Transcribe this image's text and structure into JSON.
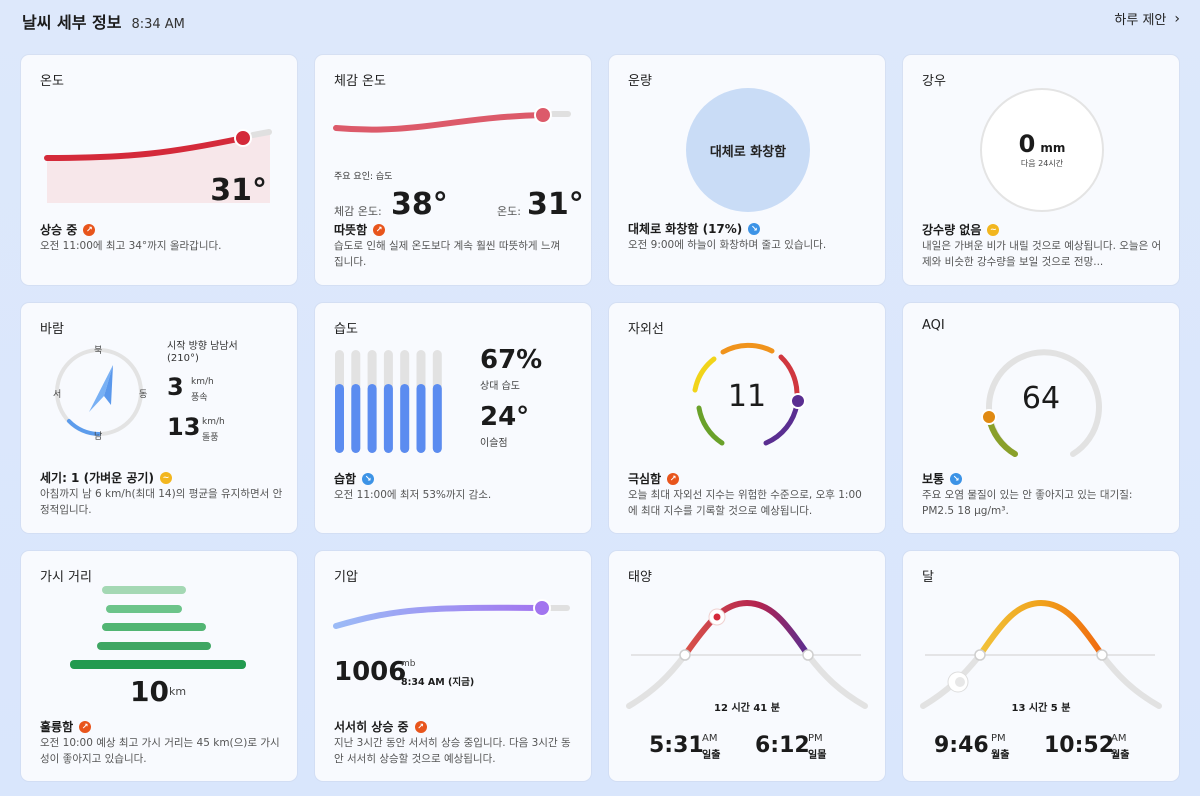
{
  "header": {
    "title": "날씨 세부 정보",
    "time": "8:34 AM",
    "link_label": "하루 제안"
  },
  "temperature": {
    "title": "온도",
    "value": "31°",
    "status": "상승 중",
    "description": "오전 11:00에 최고 34°까지 올라갑니다."
  },
  "feels_like": {
    "title": "체감 온도",
    "factor": "주요 요인: 습도",
    "feels_label": "체감 온도:",
    "feels_value": "38°",
    "temp_label": "온도:",
    "temp_value": "31°",
    "status": "따뜻함",
    "description": "습도로 인해 실제 온도보다 계속 훨씬 따뜻하게 느껴집니다."
  },
  "cloud": {
    "title": "운량",
    "center_text": "대체로 화창함",
    "status": "대체로 화창함 (17%)",
    "description": "오전 9:00에 하늘이 화창하며 줄고 있습니다."
  },
  "rain": {
    "title": "강우",
    "amount": "0",
    "unit": "mm",
    "period": "다음 24시간",
    "status": "강수량 없음",
    "description": "내일은 가벼운 비가 내릴 것으로 예상됩니다. 오늘은 어제와 비슷한 강수량을 보일 것으로 전망..."
  },
  "wind": {
    "title": "바람",
    "n": "북",
    "w": "서",
    "e": "동",
    "s": "남",
    "direction": "시작 방향 남남서",
    "degrees": "(210°)",
    "speed": "3",
    "speed_unit": "km/h",
    "speed_label": "풍속",
    "gust": "13",
    "gust_unit": "km/h",
    "gust_label": "돌풍",
    "status": "세기: 1 (가벼운 공기)",
    "description": "아침까지 남 6 km/h(최대 14)의 평균을 유지하면서 안정적입니다."
  },
  "humidity": {
    "title": "습도",
    "level": 0.67,
    "relative": "67%",
    "relative_label": "상대 습도",
    "dew": "24°",
    "dew_label": "이슬점",
    "status": "습함",
    "description": "오전 11:00에 최저 53%까지 감소."
  },
  "uv": {
    "title": "자외선",
    "value": "11",
    "status": "극심함",
    "description": "오늘 최대 자외선 지수는 위험한 수준으로, 오후 1:00에 최대 지수를 기록할 것으로 예상됩니다."
  },
  "aqi": {
    "title": "AQI",
    "value": "64",
    "status": "보통",
    "description": "주요 오염 물질이 있는 안 좋아지고 있는 대기질: PM2.5 18 μg/m³."
  },
  "visibility": {
    "title": "가시 거리",
    "value": "10",
    "unit": "km",
    "status": "훌륭함",
    "description": "오전 10:00 예상 최고 가시 거리는 45 km(으)로 가시성이 좋아지고 있습니다."
  },
  "pressure": {
    "title": "기압",
    "value": "1006",
    "unit": "mb",
    "time": "8:34 AM (지금)",
    "status": "서서히 상승 중",
    "description": "지난 3시간 동안 서서히 상승 중입니다. 다음 3시간 동안 서서히 상승할 것으로 예상됩니다."
  },
  "sun": {
    "title": "태양",
    "duration": "12 시간 41 분",
    "rise_time": "5:31",
    "rise_ampm": "AM",
    "rise_label": "일출",
    "set_time": "6:12",
    "set_ampm": "PM",
    "set_label": "일몰"
  },
  "moon": {
    "title": "달",
    "duration": "13 시간 5 분",
    "rise_time": "9:46",
    "rise_ampm": "PM",
    "rise_label": "월출",
    "set_time": "10:52",
    "set_ampm": "AM",
    "set_label": "월출"
  },
  "colors": {
    "accent_red": "#d42a3a",
    "humidity_blue": "#5b8cf0",
    "uv_purple": "#5a2e91",
    "sun_orange": "#e8551c"
  }
}
